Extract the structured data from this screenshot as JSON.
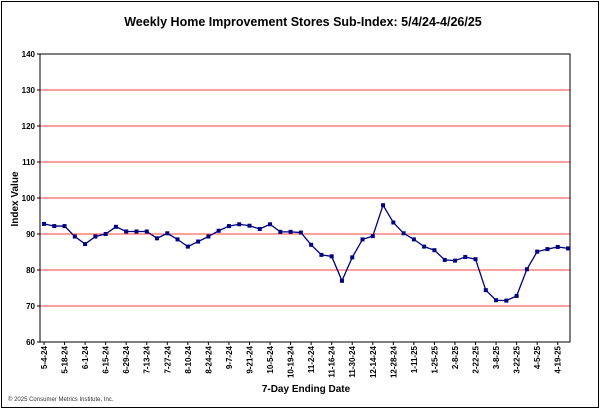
{
  "chart_data": {
    "type": "line",
    "title": "Weekly Home Improvement Stores Sub-Index: 5/4/24-4/26/25",
    "xlabel": "7-Day Ending Date",
    "ylabel": "Index Value",
    "ylim": [
      60,
      140
    ],
    "yticks": [
      60,
      70,
      80,
      90,
      100,
      110,
      120,
      130,
      140
    ],
    "grid": true,
    "legend": "none",
    "x_tick_labels": [
      "5-4-24",
      "5-18-24",
      "6-1-24",
      "6-15-24",
      "6-29-24",
      "7-13-24",
      "7-27-24",
      "8-10-24",
      "8-24-24",
      "9-7-24",
      "9-21-24",
      "10-5-24",
      "10-19-24",
      "11-2-24",
      "11-16-24",
      "11-30-24",
      "12-14-24",
      "12-28-24",
      "1-11-25",
      "1-25-25",
      "2-8-25",
      "2-22-25",
      "3-8-25",
      "3-22-25",
      "4-5-25",
      "4-19-25"
    ],
    "series": [
      {
        "values": [
          92.8,
          92.2,
          92.2,
          89.3,
          87.2,
          89.3,
          90.0,
          92.0,
          90.7,
          90.7,
          90.7,
          88.8,
          90.2,
          88.5,
          86.5,
          87.9,
          89.3,
          90.9,
          92.2,
          92.7,
          92.3,
          91.4,
          92.7,
          90.6,
          90.6,
          90.4,
          87.0,
          84.2,
          83.8,
          77.0,
          83.5,
          88.5,
          89.4,
          98.0,
          93.2,
          90.2,
          88.5,
          86.5,
          85.5,
          82.8,
          82.6,
          83.6,
          83.0,
          74.4,
          71.6,
          71.5,
          72.8,
          80.2,
          85.1,
          85.8,
          86.4,
          86.0
        ],
        "color": "#000080"
      }
    ],
    "colors": {
      "plot_border": "#000000",
      "gridline": "#ff0000",
      "line": "#000080"
    }
  },
  "footer": {
    "credit": "© 2025 Consumer Metrics Institute, Inc."
  }
}
